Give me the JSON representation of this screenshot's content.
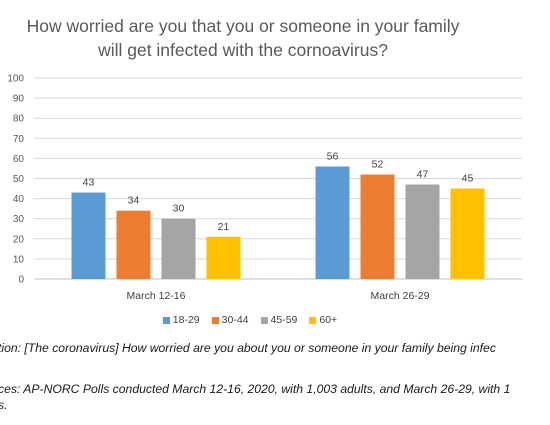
{
  "chart_data": {
    "type": "bar",
    "title_lines": [
      "How worried are you that you or someone in your family",
      "will get infected with the cornoavirus?"
    ],
    "categories": [
      "March 12-16",
      "March 26-29"
    ],
    "series": [
      {
        "name": "18-29",
        "color": "#5b9bd5",
        "values": [
          43,
          56
        ]
      },
      {
        "name": "30-44",
        "color": "#ed7d31",
        "values": [
          34,
          52
        ]
      },
      {
        "name": "45-59",
        "color": "#a5a5a5",
        "values": [
          30,
          47
        ]
      },
      {
        "name": "60+",
        "color": "#ffc000",
        "values": [
          21,
          45
        ]
      }
    ],
    "ylim": [
      0,
      100
    ],
    "yticks": [
      0,
      10,
      20,
      30,
      40,
      50,
      60,
      70,
      80,
      90,
      100
    ],
    "grid": true,
    "legend_position": "bottom"
  },
  "notes": {
    "question": "tion: [The coronavirus] How worried are you about you or someone in your family being infec",
    "question_cont": "",
    "source": "ces: AP-NORC Polls conducted March 12-16, 2020, with 1,003 adults, and March 26-29, with 1",
    "source_cont": "s."
  }
}
